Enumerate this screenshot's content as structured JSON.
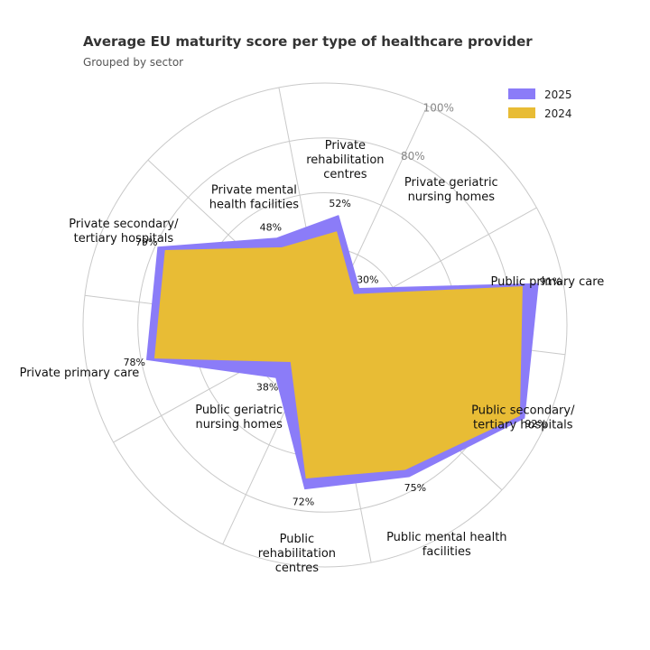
{
  "chart_data": {
    "type": "radar",
    "title": "Average EU maturity score per type of healthcare provider",
    "subtitle": "Grouped by sector",
    "categories": [
      [
        "Public primary care"
      ],
      [
        "Private geriatric",
        "nursing homes"
      ],
      [
        "Private",
        "rehabilitation",
        "centres"
      ],
      [
        "Private mental",
        "health facilities"
      ],
      [
        "Private secondary/",
        "tertiary hospitals"
      ],
      [
        "Private primary care"
      ],
      [
        "Public geriatric",
        "nursing homes"
      ],
      [
        "Public",
        "rehabilitation",
        "centres"
      ],
      [
        "Public mental health",
        "facilities"
      ],
      [
        "Public secondary/",
        "tertiary hospitals"
      ]
    ],
    "series": [
      {
        "name": "2025",
        "color": "#8b7cf8",
        "values": [
          91,
          30,
          52,
          48,
          79,
          78,
          38,
          72,
          75,
          92
        ],
        "value_labels": [
          "91%",
          "30%",
          "52%",
          "48%",
          "79%",
          "78%",
          "38%",
          "72%",
          "75%",
          "92%"
        ]
      },
      {
        "name": "2024",
        "color": "#e8bc35",
        "values": [
          85,
          27,
          46,
          44,
          76,
          75,
          30,
          68,
          72,
          90
        ]
      }
    ],
    "radial_ticks": [
      {
        "value": 80,
        "label": "80%"
      },
      {
        "value": 100,
        "label": "100%"
      }
    ],
    "radial_range": [
      20,
      100
    ],
    "grid": true,
    "legend_position": "top-right"
  }
}
